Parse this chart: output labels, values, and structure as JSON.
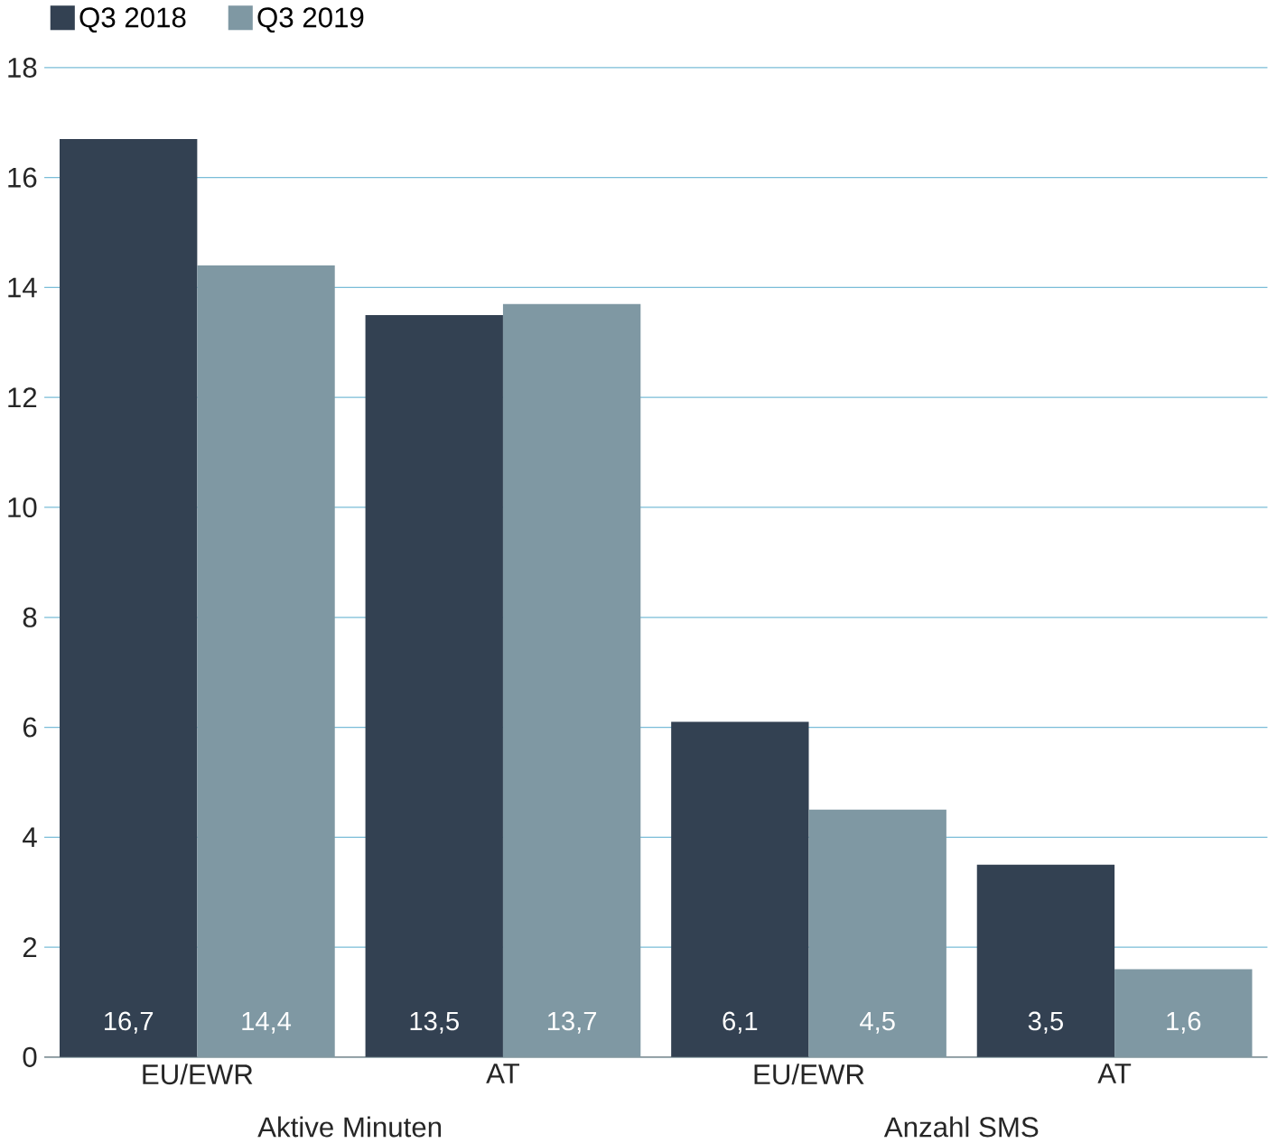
{
  "chart_data": {
    "type": "bar",
    "categories": [
      "EU/EWR",
      "AT",
      "EU/EWR",
      "AT"
    ],
    "series": [
      {
        "name": "Q3 2018",
        "color": "#334152",
        "values": [
          16.7,
          13.5,
          6.1,
          3.5
        ],
        "value_labels": [
          "16,7",
          "13,5",
          "6,1",
          "3,5"
        ]
      },
      {
        "name": "Q3 2019",
        "color": "#7f98a3",
        "values": [
          14.4,
          13.7,
          4.5,
          1.6
        ],
        "value_labels": [
          "14,4",
          "13,7",
          "4,5",
          "1,6"
        ]
      }
    ],
    "annotations": [
      "Aktive Minuten",
      "Anzahl SMS"
    ],
    "ylim": [
      0,
      18
    ],
    "yticks": [
      0,
      2,
      4,
      6,
      8,
      10,
      12,
      14,
      16,
      18
    ],
    "grid": "y",
    "legend": "top left"
  }
}
